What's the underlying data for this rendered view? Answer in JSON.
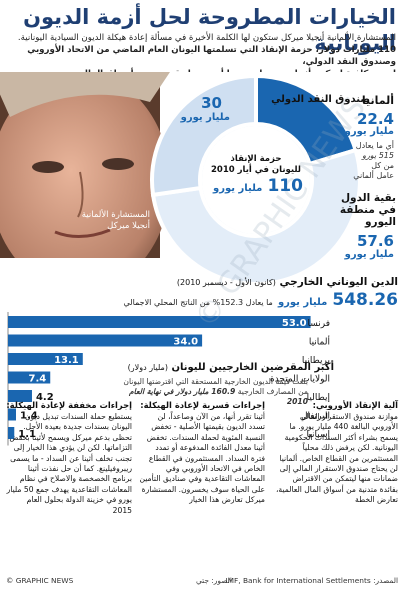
{
  "title": "الخيارات المطروحة لحل أزمة الديون اليونانية",
  "intro": [
    "المستشارة الألمانية أنجيلا ميركل ستكون لها الكلمة الأخيرة في مسألة إعادة هيكلة الديون السيادية اليونانية.",
    "110 مليارات دولار، حزمة الإنقاذ التي تسلمتها اليونان العام الماضي من الاتحاد الأوروبي وصندوق النقد الدولي،",
    "ليست كافية لتمكين أثينا من سداد ديونها أو تحصيل قروض من أسواق المال."
  ],
  "donut": {
    "center_title": "حزمة الإنقاذ",
    "center_sub": "لليونان في أيار 2010",
    "center_value": "110",
    "center_unit": "مليار يورو",
    "slices": [
      {
        "name": "ألمانيا",
        "value": 22.4,
        "unit": "مليار يورو",
        "notes": [
          "أي ما يعادل",
          "515 يورو",
          "من كل",
          "عامل ألماني"
        ]
      },
      {
        "name": "بقية الدول في منطقة اليورو",
        "value": 57.6,
        "unit": "مليار يورو",
        "notes": []
      },
      {
        "name": "صندوق النقد الدولي",
        "value": 30,
        "unit": "مليار يورو",
        "notes": []
      }
    ],
    "photo_caption": [
      "المستشارة الألمانية",
      "أنجيلا ميركل"
    ]
  },
  "debt": {
    "heading": "الدين اليوناني الخارجي",
    "period": "(كانون الأول - ديسمبر 2010)",
    "total": "548.26",
    "unit": "مليار يورو",
    "pct_note": "ما يعادل 152.3% من الناتج المحلي الاجمالي"
  },
  "lenders": {
    "heading": "أكبر المقرضين الخارجيين لليونان",
    "heading_unit": "(مليار دولار)",
    "note": "بلغت قيمة الديون الخارجية المستحقة التي اقترضتها اليونان من المصارف الخارجية",
    "note2": "160.9 مليار دولار في نهاية العام 2010"
  },
  "chart_data": {
    "type": "bar",
    "orientation": "horizontal",
    "title": "أكبر المقرضين الخارجيين لليونان",
    "ylabel": "مليار دولار",
    "categories": [
      "فرنسا",
      "ألمانيا",
      "بريطانيا",
      "الولايات المتحدة",
      "إيطاليا",
      "البرتغال",
      "إسبانيا"
    ],
    "values": [
      53.0,
      34.0,
      13.1,
      7.4,
      4.2,
      1.4,
      1.1
    ],
    "xlim": [
      0,
      55
    ]
  },
  "columns": [
    {
      "title": "آلية الإنقاذ الأوروبي:",
      "body": "موازنة صندوق الاستقرار المالي الأوروبي البالغة 440 مليار يورو. ما يسمح بشراء أكثر السندات الحكومية اليونانية. لكن يرفض ذلك محلياً المستثمرين من القطاع الخاص. ألمانيا لن يحتاج صندوق الاستقرار المالي إلى ضمانات منها ليتمكن من الاقتراض بفائدة متدنية من أسواق المال العالمية، تعارض الخطة"
    },
    {
      "title": "إجراءات قسرية لإعادة الهيكلة:",
      "body": "أثينا تقرر أنها، من الآن وصاعداً، لن تسدد الديون بقيمتها الأصلية - تخفض النسبة المئوية لحملة السندات. تخفض أثينا معدل الفائدة المدفوعة أو تمدد فترة السداد. المستثمرون في القطاع الخاص في الاتحاد الأوروبي وفي المعاشات التقاعدية وفي صناديق التأمين على الحياة سوف يخسرون. المستشارة ميركل تعارض هذا الخيار"
    },
    {
      "title": "إجراءات مخففة لإعادة الهيكلة:",
      "body": "يستطيع حملة السندات تبديل ديون اليونان بسندات جديدة بعيدة الأجل. تحظى بدعم ميركل ويسمح لأثينا بخفض التزاماتها. لكن لن يؤدي هذا الخيار إلى تجنب تخلف أثينا عن السداد - ما يسمى ريبروفيلينغ. كما أن حل نفذت أثينا برنامج الخصخصة والاصلاح في نظام المعاشات التقاعدية يهدف جمع 50 مليار يورو في خزينة الدولة بحلول العام 2015"
    }
  ],
  "watermark": "© GRAPHIC NEWS",
  "footer": {
    "credit": "© GRAPHIC NEWS",
    "photo": "الصور: جتي",
    "source": "المصدر: IMF, Bank for International Settlements"
  },
  "colors": {
    "title": "#1f3f73",
    "accent": "#1a66b0",
    "light": "#dbe8f6",
    "bar": "#1a66b0"
  }
}
